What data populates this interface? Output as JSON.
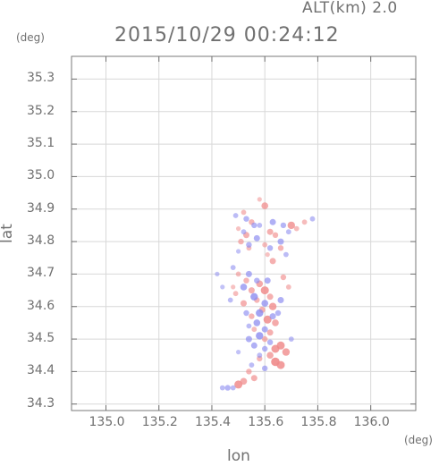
{
  "altitude_label": "ALT(km) 2.0",
  "timestamp": "2015/10/29 00:24:12",
  "chart_data": {
    "type": "scatter",
    "title": "2015/10/29 00:24:12",
    "xlabel": "lon",
    "ylabel": "lat",
    "x_unit": "(deg)",
    "y_unit": "(deg)",
    "xlim": [
      134.87,
      136.17
    ],
    "ylim": [
      34.28,
      35.37
    ],
    "x_ticks": [
      "135.0",
      "135.2",
      "135.4",
      "135.6",
      "135.8",
      "136.0"
    ],
    "y_ticks": [
      "34.3",
      "34.4",
      "34.5",
      "34.6",
      "34.7",
      "34.8",
      "34.9",
      "35.0",
      "35.1",
      "35.2",
      "35.3"
    ],
    "grid": true,
    "colors": {
      "positive": "#f08a8a",
      "negative": "#8a8af0",
      "grid": "#d8d8d8",
      "axis": "#707070"
    },
    "series": [
      {
        "values": [
          [
            135.52,
            34.89,
            0.4
          ],
          [
            135.55,
            34.86,
            0.5
          ],
          [
            135.5,
            34.84,
            0.3
          ],
          [
            135.53,
            34.82,
            0.6
          ],
          [
            135.51,
            34.8,
            0.5
          ],
          [
            135.54,
            34.78,
            0.4
          ],
          [
            135.58,
            34.93,
            0.3
          ],
          [
            135.6,
            34.91,
            0.7
          ],
          [
            135.62,
            34.83,
            0.6
          ],
          [
            135.64,
            34.82,
            0.5
          ],
          [
            135.6,
            34.79,
            0.4
          ],
          [
            135.66,
            34.78,
            0.5
          ],
          [
            135.61,
            34.76,
            0.3
          ],
          [
            135.63,
            34.74,
            0.6
          ],
          [
            135.7,
            34.85,
            0.8
          ],
          [
            135.72,
            34.84,
            0.4
          ],
          [
            135.75,
            34.86,
            0.4
          ],
          [
            135.58,
            34.67,
            0.7
          ],
          [
            135.6,
            34.65,
            0.9
          ],
          [
            135.62,
            34.63,
            0.6
          ],
          [
            135.57,
            34.62,
            0.5
          ],
          [
            135.63,
            34.6,
            0.8
          ],
          [
            135.59,
            34.59,
            0.6
          ],
          [
            135.55,
            34.57,
            0.5
          ],
          [
            135.61,
            34.56,
            0.9
          ],
          [
            135.64,
            34.55,
            0.7
          ],
          [
            135.56,
            34.53,
            0.4
          ],
          [
            135.62,
            34.52,
            0.6
          ],
          [
            135.6,
            34.5,
            0.5
          ],
          [
            135.66,
            34.48,
            0.9
          ],
          [
            135.64,
            34.47,
            0.9
          ],
          [
            135.68,
            34.46,
            0.8
          ],
          [
            135.62,
            34.45,
            0.7
          ],
          [
            135.64,
            34.43,
            1.0
          ],
          [
            135.66,
            34.42,
            0.9
          ],
          [
            135.58,
            34.44,
            0.5
          ],
          [
            135.54,
            34.4,
            0.5
          ],
          [
            135.56,
            34.38,
            0.6
          ],
          [
            135.5,
            34.36,
            0.9
          ],
          [
            135.52,
            34.37,
            0.7
          ],
          [
            135.5,
            34.7,
            0.4
          ],
          [
            135.53,
            34.68,
            0.5
          ],
          [
            135.49,
            34.64,
            0.4
          ],
          [
            135.52,
            34.61,
            0.6
          ],
          [
            135.48,
            34.66,
            0.3
          ],
          [
            135.55,
            34.65,
            0.6
          ],
          [
            135.67,
            34.69,
            0.5
          ],
          [
            135.69,
            34.66,
            0.4
          ]
        ]
      },
      {
        "values": [
          [
            135.49,
            34.88,
            0.4
          ],
          [
            135.53,
            34.87,
            0.5
          ],
          [
            135.56,
            34.85,
            0.5
          ],
          [
            135.52,
            34.83,
            0.4
          ],
          [
            135.57,
            34.81,
            0.6
          ],
          [
            135.54,
            34.79,
            0.5
          ],
          [
            135.5,
            34.77,
            0.3
          ],
          [
            135.58,
            34.85,
            0.4
          ],
          [
            135.63,
            34.86,
            0.6
          ],
          [
            135.67,
            34.85,
            0.5
          ],
          [
            135.69,
            34.83,
            0.4
          ],
          [
            135.66,
            34.8,
            0.6
          ],
          [
            135.62,
            34.78,
            0.5
          ],
          [
            135.68,
            34.76,
            0.4
          ],
          [
            135.78,
            34.87,
            0.4
          ],
          [
            135.48,
            34.72,
            0.4
          ],
          [
            135.54,
            34.7,
            0.6
          ],
          [
            135.57,
            34.68,
            0.5
          ],
          [
            135.52,
            34.66,
            0.7
          ],
          [
            135.56,
            34.63,
            0.8
          ],
          [
            135.6,
            34.61,
            0.7
          ],
          [
            135.66,
            34.62,
            0.6
          ],
          [
            135.58,
            34.58,
            0.8
          ],
          [
            135.53,
            34.58,
            0.5
          ],
          [
            135.63,
            34.57,
            0.6
          ],
          [
            135.57,
            34.55,
            0.7
          ],
          [
            135.54,
            34.54,
            0.4
          ],
          [
            135.6,
            34.53,
            0.6
          ],
          [
            135.58,
            34.51,
            0.8
          ],
          [
            135.54,
            34.5,
            0.6
          ],
          [
            135.62,
            34.49,
            0.5
          ],
          [
            135.56,
            34.48,
            0.6
          ],
          [
            135.6,
            34.47,
            0.5
          ],
          [
            135.58,
            34.45,
            0.4
          ],
          [
            135.5,
            34.46,
            0.3
          ],
          [
            135.44,
            34.66,
            0.3
          ],
          [
            135.47,
            34.62,
            0.4
          ],
          [
            135.42,
            34.7,
            0.3
          ],
          [
            135.46,
            34.35,
            0.5
          ],
          [
            135.44,
            34.35,
            0.4
          ],
          [
            135.48,
            34.35,
            0.4
          ],
          [
            135.6,
            34.41,
            0.5
          ],
          [
            135.55,
            34.42,
            0.4
          ],
          [
            135.65,
            34.58,
            0.5
          ],
          [
            135.7,
            34.5,
            0.4
          ],
          [
            135.61,
            34.68,
            0.6
          ]
        ]
      }
    ]
  }
}
